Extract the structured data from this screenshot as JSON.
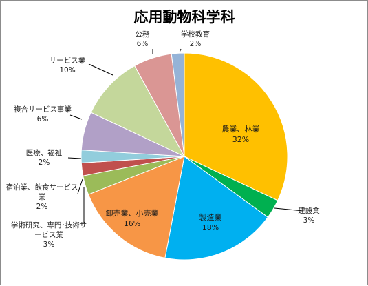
{
  "chart_data": {
    "type": "pie",
    "title": "応用動物科学科",
    "legend": "none",
    "slices": [
      {
        "name": "農業、林業",
        "value": 32,
        "label": "32%",
        "color": "#FFC000",
        "label_pos": "inside"
      },
      {
        "name": "建設業",
        "value": 3,
        "label": "3%",
        "color": "#00B050",
        "label_pos": "outside"
      },
      {
        "name": "製造業",
        "value": 18,
        "label": "18%",
        "color": "#00B0F0",
        "label_pos": "inside"
      },
      {
        "name": "卸売業、小売業",
        "value": 16,
        "label": "16%",
        "color": "#F79646",
        "label_pos": "inside"
      },
      {
        "name": "学術研究、専門･技術サービス業",
        "value": 3,
        "label": "3%",
        "color": "#9BBB59",
        "label_pos": "outside"
      },
      {
        "name": "宿泊業、飲食サービス業",
        "value": 2,
        "label": "2%",
        "color": "#C0504D",
        "label_pos": "outside"
      },
      {
        "name": "医療、福祉",
        "value": 2,
        "label": "2%",
        "color": "#92CDDC",
        "label_pos": "outside"
      },
      {
        "name": "複合サービス事業",
        "value": 6,
        "label": "6%",
        "color": "#B1A0C7",
        "label_pos": "outside"
      },
      {
        "name": "サービス業",
        "value": 10,
        "label": "10%",
        "color": "#C4D79B",
        "label_pos": "outside"
      },
      {
        "name": "公務",
        "value": 6,
        "label": "6%",
        "color": "#DA9694",
        "label_pos": "outside"
      },
      {
        "name": "学校教育",
        "value": 2,
        "label": "2%",
        "color": "#95B3D7",
        "label_pos": "outside"
      }
    ]
  }
}
